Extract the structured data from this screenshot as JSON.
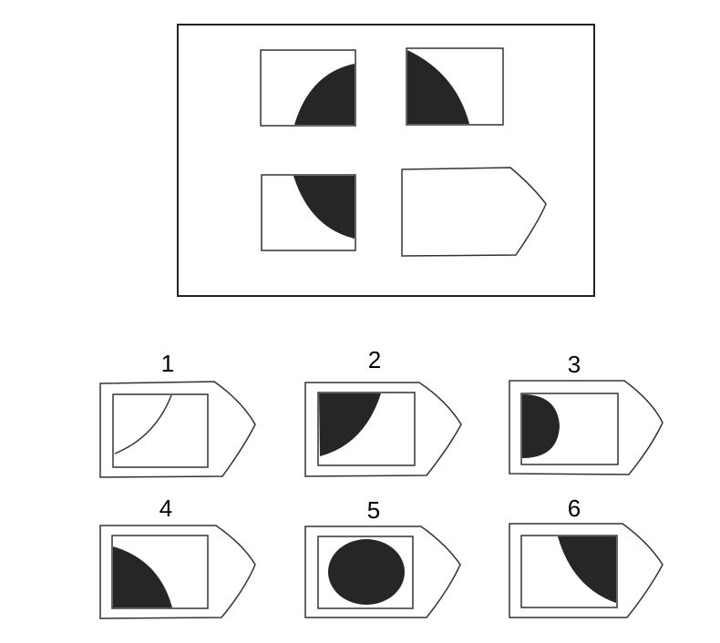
{
  "question": {
    "cells": [
      {
        "name": "cell-top-left",
        "shape": "half-ellipse-right"
      },
      {
        "name": "cell-top-right",
        "shape": "half-ellipse-left"
      },
      {
        "name": "cell-bottom-left",
        "shape": "quarter-bottom-right"
      },
      {
        "name": "cell-missing",
        "shape": "blank-arrow-tag"
      }
    ]
  },
  "options": [
    {
      "label": "1",
      "shape": "arc-outline"
    },
    {
      "label": "2",
      "shape": "filled-arc-top-left"
    },
    {
      "label": "3",
      "shape": "half-circle-left"
    },
    {
      "label": "4",
      "shape": "quarter-bottom-left"
    },
    {
      "label": "5",
      "shape": "oval-center"
    },
    {
      "label": "6",
      "shape": "quarter-top-right"
    }
  ],
  "colors": {
    "ink": "#262626",
    "line": "#333333",
    "paper": "#ffffff"
  }
}
